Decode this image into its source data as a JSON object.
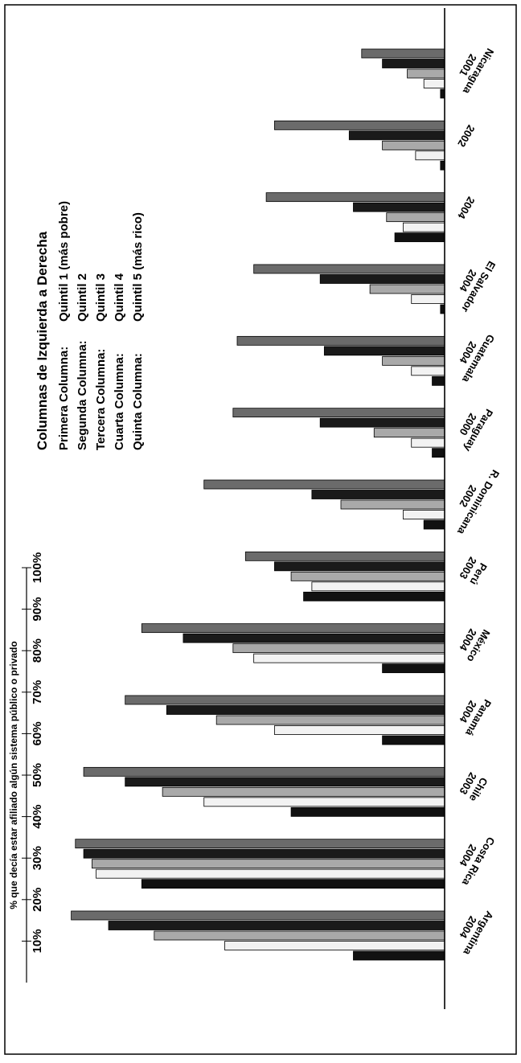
{
  "chart_data": {
    "type": "bar",
    "orientation": "rotated-180-vertical-grouped",
    "ylabel": "% que decía estar afiliado algún sistema público o privado",
    "ylim": [
      0,
      100
    ],
    "yticks": [
      "10%",
      "20%",
      "30%",
      "40%",
      "50%",
      "60%",
      "70%",
      "80%",
      "90%",
      "100%"
    ],
    "categories": [
      [
        "Argentina",
        "2004"
      ],
      [
        "Costa Rica",
        "2004"
      ],
      [
        "Chile",
        "2003"
      ],
      [
        "Panamá",
        "2004"
      ],
      [
        "México",
        "2004"
      ],
      [
        "Perú",
        "2003"
      ],
      [
        "R. Dominicana",
        "2002"
      ],
      [
        "Paraguay",
        "2000"
      ],
      [
        "Guatemala",
        "2004"
      ],
      [
        "El Salvador",
        "2004"
      ],
      [
        "",
        "2004"
      ],
      [
        "",
        "2002"
      ],
      [
        "Nicaragua",
        "2001"
      ]
    ],
    "series": [
      {
        "name": "Quintil 1 (más pobre)",
        "color": "#111111",
        "values": [
          22,
          73,
          37,
          15,
          15,
          34,
          5,
          3,
          3,
          1,
          12,
          1,
          1
        ]
      },
      {
        "name": "Quintil 2",
        "color": "#f2f2f2",
        "values": [
          53,
          84,
          58,
          41,
          46,
          32,
          10,
          8,
          8,
          8,
          10,
          7,
          5
        ]
      },
      {
        "name": "Quintil 3",
        "color": "#a9a9a9",
        "values": [
          70,
          85,
          68,
          55,
          51,
          37,
          25,
          17,
          15,
          18,
          14,
          15,
          9
        ]
      },
      {
        "name": "Quintil 4",
        "color": "#1a1a1a",
        "values": [
          81,
          87,
          77,
          67,
          63,
          41,
          32,
          30,
          29,
          30,
          22,
          23,
          15
        ]
      },
      {
        "name": "Quintil 5 (más rico)",
        "color": "#6b6b6b",
        "values": [
          90,
          89,
          87,
          77,
          73,
          48,
          58,
          51,
          50,
          46,
          43,
          41,
          20
        ]
      }
    ],
    "legend": {
      "title": "Columnas de Izquierda a Derecha",
      "rows": [
        [
          "Primera Columna:",
          "Quintil 1 (más pobre)"
        ],
        [
          "Segunda Columna:",
          "Quintil 2"
        ],
        [
          "Tercera Columna:",
          "Quintil 3"
        ],
        [
          "Cuarta Columna:",
          "Quintil 4"
        ],
        [
          "Quinta Columna:",
          "Quintil 5 (más rico)"
        ]
      ],
      "placement": "top-right"
    }
  }
}
